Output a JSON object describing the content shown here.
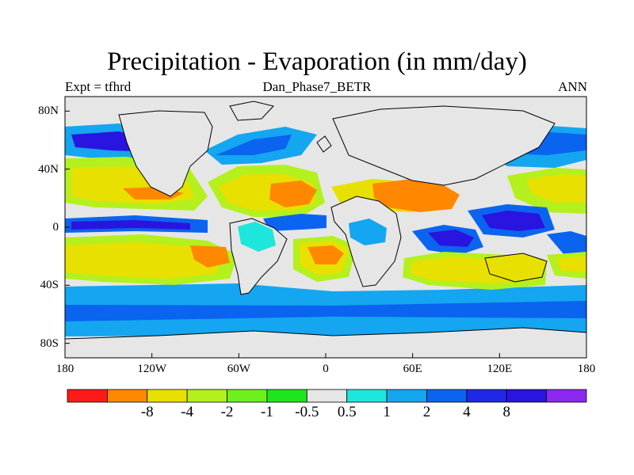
{
  "title": "Precipitation - Evaporation (in mm/day)",
  "left_subtitle": "Expt = tfhrd",
  "center_subtitle": "Dan_Phase7_BETR",
  "right_subtitle": "ANN",
  "lat_labels": [
    {
      "text": "80N",
      "lat": 80
    },
    {
      "text": "40N",
      "lat": 40
    },
    {
      "text": "0",
      "lat": 0
    },
    {
      "text": "40S",
      "lat": -40
    },
    {
      "text": "80S",
      "lat": -80
    }
  ],
  "lon_labels": [
    {
      "text": "180",
      "lon": -180
    },
    {
      "text": "120W",
      "lon": -120
    },
    {
      "text": "60W",
      "lon": -60
    },
    {
      "text": "0",
      "lon": 0
    },
    {
      "text": "60E",
      "lon": 60
    },
    {
      "text": "120E",
      "lon": 120
    },
    {
      "text": "180",
      "lon": 180
    }
  ],
  "colorbar": {
    "colors": [
      "#ff1a1a",
      "#ff8800",
      "#e8e000",
      "#b4f01e",
      "#6ef01e",
      "#1ee61e",
      "#e6e6e6",
      "#1ee6dc",
      "#14a6f0",
      "#0a64f0",
      "#1e28e6",
      "#2a14e0",
      "#8c28f0"
    ],
    "labels": [
      "-8",
      "-4",
      "-2",
      "-1",
      "-0.5",
      "0.5",
      "1",
      "2",
      "4",
      "8"
    ]
  }
}
